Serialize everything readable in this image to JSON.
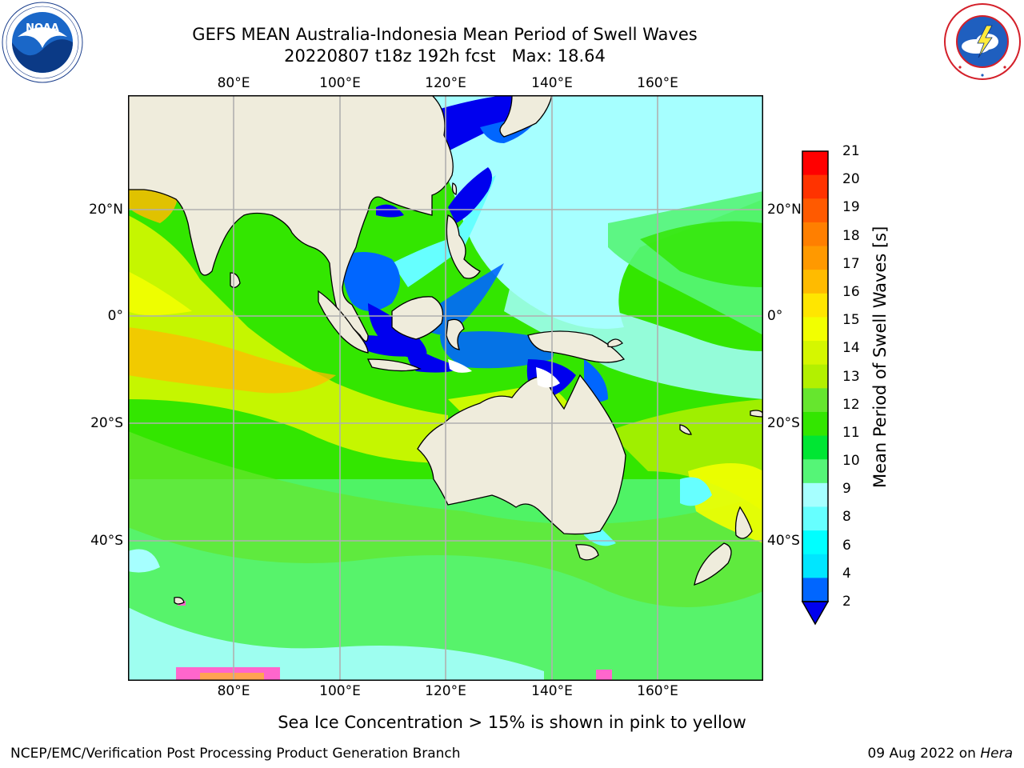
{
  "title": {
    "line1": "GEFS MEAN Australia-Indonesia Mean Period of Swell Waves",
    "line2": "20220807 t18z 192h fcst   Max: 18.64"
  },
  "logos": {
    "left": {
      "text": "NOAA",
      "ring_text": "NATIONAL OCEANIC AND ATMOSPHERIC ADMINISTRATION · U.S. DEPARTMENT OF COMMERCE"
    },
    "right": {
      "ring_text": "NATIONAL WEATHER SERVICE"
    }
  },
  "map": {
    "lon_ticks": [
      "80°E",
      "100°E",
      "120°E",
      "140°E",
      "160°E"
    ],
    "lat_ticks": [
      "20°N",
      "0°",
      "20°S",
      "40°S"
    ],
    "land_color": "#efecdc",
    "grid_color": "#b0b0b0"
  },
  "colorbar": {
    "label": "Mean Period of Swell Waves [s]",
    "ticks": [
      "21",
      "20",
      "19",
      "18",
      "17",
      "16",
      "15",
      "14",
      "13",
      "12",
      "11",
      "10",
      "9",
      "8",
      "6",
      "4",
      "2"
    ],
    "colors_top_to_bottom": [
      "#ff0000",
      "#ff3300",
      "#ff5a00",
      "#ff7f00",
      "#ff9900",
      "#ffbb00",
      "#ffe600",
      "#f2ff00",
      "#d5f700",
      "#b3f000",
      "#66e62e",
      "#33e600",
      "#00e633",
      "#55f577",
      "#a6ffff",
      "#66ffff",
      "#00ffff",
      "#00e6ff",
      "#0066ff"
    ],
    "extend_color": "#0000ee"
  },
  "note": "Sea Ice Concentration > 15% is shown in pink to yellow",
  "footer": {
    "left": "NCEP/EMC/Verification Post Processing Product Generation Branch",
    "right_date": "09 Aug 2022 on ",
    "right_host": "Hera"
  }
}
